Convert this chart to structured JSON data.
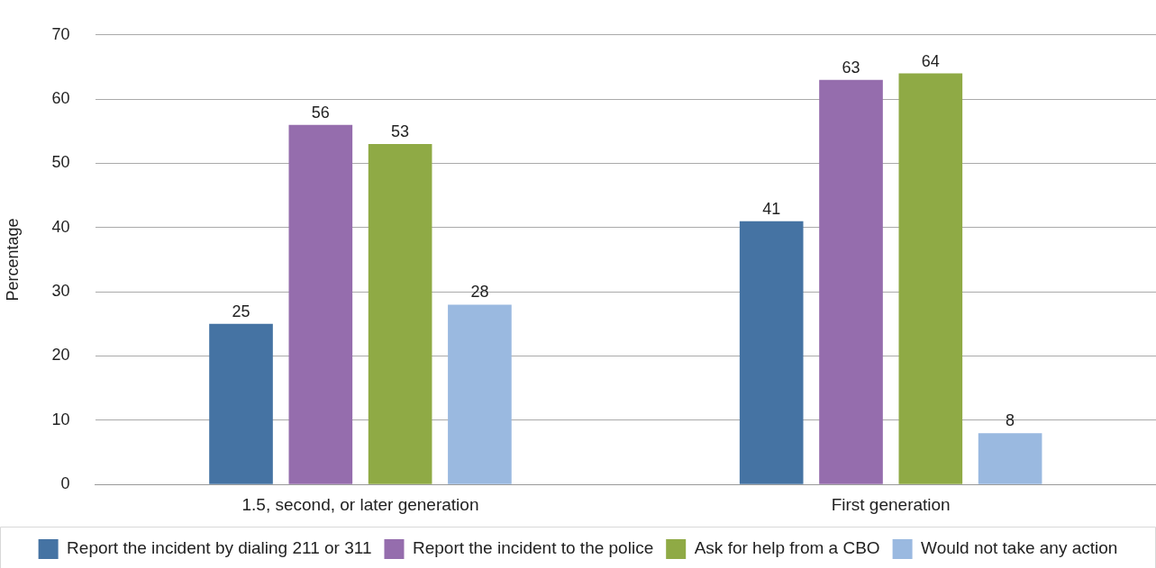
{
  "chart_data": {
    "type": "bar",
    "ylabel": "Percentage",
    "categories": [
      "1.5, second, or later generation",
      "First generation"
    ],
    "series": [
      {
        "name": "Report the incident by dialing 211 or 311",
        "color": "#4573a3",
        "values": [
          25,
          41
        ]
      },
      {
        "name": "Report the incident to the police",
        "color": "#956dad",
        "values": [
          56,
          63
        ]
      },
      {
        "name": "Ask for help from a CBO",
        "color": "#8faa45",
        "values": [
          53,
          64
        ]
      },
      {
        "name": "Would not take any action",
        "color": "#9ab9e0",
        "values": [
          28,
          8
        ]
      }
    ],
    "ylim": [
      0,
      70
    ],
    "yticks": [
      0,
      10,
      20,
      30,
      40,
      50,
      60,
      70
    ],
    "grid": "y",
    "legend": "bottom",
    "data_labels": true
  }
}
